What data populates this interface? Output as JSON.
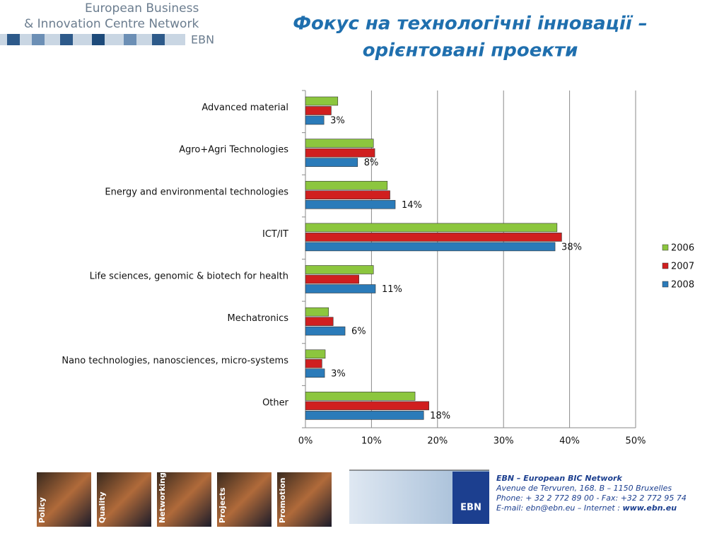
{
  "header": {
    "logo_line1": "European Business",
    "logo_line2": "& Innovation Centre Network",
    "logo_ebn": "EBN"
  },
  "chart_data": {
    "type": "bar",
    "orientation": "horizontal",
    "title": [
      "Фокус на технологічні інновації –",
      "орієнтовані проекти"
    ],
    "categories": [
      "Advanced material",
      "Agro+Agri Technologies",
      "Energy and environmental technologies",
      "ICT/IT",
      "Life sciences, genomic & biotech for health",
      "Mechatronics",
      "Nano technologies, nanosciences, micro-systems",
      "Other"
    ],
    "series": [
      {
        "name": "2006",
        "color": "#8cc63e",
        "values": [
          4.9,
          10.3,
          12.4,
          38.1,
          10.3,
          3.5,
          3.0,
          16.6
        ]
      },
      {
        "name": "2007",
        "color": "#d01f1f",
        "values": [
          3.9,
          10.5,
          12.8,
          38.8,
          8.1,
          4.2,
          2.5,
          18.7
        ]
      },
      {
        "name": "2008",
        "color": "#2b7bb9",
        "values": [
          2.8,
          7.9,
          13.6,
          37.8,
          10.6,
          6.0,
          2.9,
          17.9
        ],
        "value_labels": [
          "3%",
          "8%",
          "14%",
          "38%",
          "11%",
          "6%",
          "3%",
          "18%"
        ]
      }
    ],
    "xlim": [
      0,
      50
    ],
    "xticks": [
      {
        "value": 0,
        "label": "0%"
      },
      {
        "value": 10,
        "label": "10%"
      },
      {
        "value": 20,
        "label": "20%"
      },
      {
        "value": 30,
        "label": "30%"
      },
      {
        "value": 40,
        "label": "40%"
      },
      {
        "value": 50,
        "label": "50%"
      }
    ],
    "grid": true,
    "legend": "right"
  },
  "footer": {
    "tiles": [
      "Policy",
      "Quality",
      "Networking",
      "Projects",
      "Promotion"
    ],
    "logo": "EBN",
    "org": "EBN – European BIC Network",
    "address": "Avenue de Tervuren, 168.  B – 1150 Bruxelles",
    "phone": "Phone: + 32 2 772 89 00 - Fax: +32 2 772 95 74",
    "email": "E-mail: ebn@ebn.eu – Internet : ",
    "web": "www.ebn.eu"
  }
}
